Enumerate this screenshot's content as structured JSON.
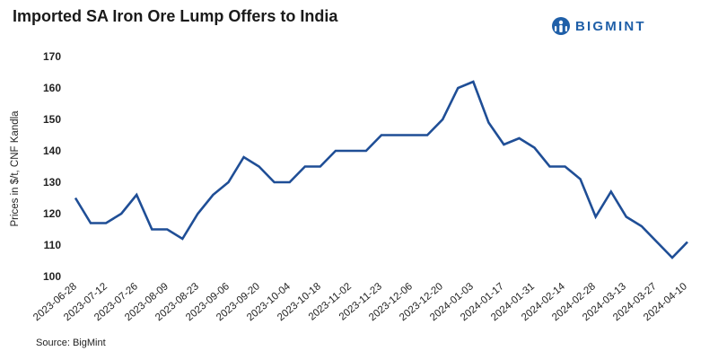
{
  "title": "Imported SA Iron Ore Lump Offers to India",
  "logo": {
    "text": "BIGMINT",
    "icon": "bigmint-globe-icon",
    "color": "#1f5fa8"
  },
  "source": "Source: BigMint",
  "chart_data": {
    "type": "line",
    "title": "Imported SA Iron Ore Lump Offers to India",
    "xlabel": "",
    "ylabel": "Prices in $/t, CNF Kandla",
    "ylim": [
      100,
      170
    ],
    "yticks": [
      100,
      110,
      120,
      130,
      140,
      150,
      160,
      170
    ],
    "grid": false,
    "line_color": "#1f4e96",
    "xtick_labels": [
      "2023-06-28",
      "2023-07-12",
      "2023-07-26",
      "2023-08-09",
      "2023-08-23",
      "2023-09-06",
      "2023-09-20",
      "2023-10-04",
      "2023-10-18",
      "2023-11-02",
      "2023-11-23",
      "2023-12-06",
      "2023-12-20",
      "2024-01-03",
      "2024-01-17",
      "2024-01-31",
      "2024-02-14",
      "2024-02-28",
      "2024-03-13",
      "2024-03-27",
      "2024-04-10"
    ],
    "series": [
      {
        "name": "Imported SA Iron Ore Lump",
        "values": [
          125,
          117,
          117,
          120,
          126,
          115,
          115,
          112,
          120,
          126,
          130,
          138,
          135,
          130,
          130,
          135,
          135,
          140,
          140,
          140,
          145,
          145,
          145,
          145,
          150,
          160,
          162,
          149,
          142,
          144,
          141,
          135,
          135,
          131,
          119,
          127,
          119,
          116,
          111,
          106,
          111
        ]
      }
    ]
  }
}
